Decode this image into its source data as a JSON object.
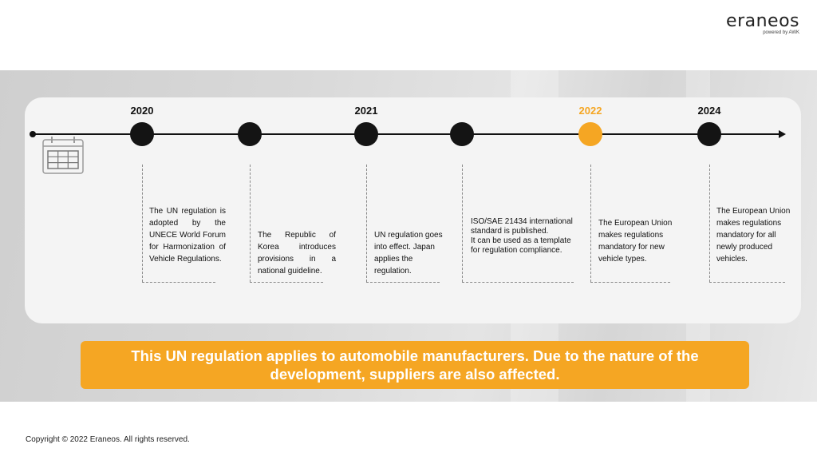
{
  "brand": {
    "name": "eraneos",
    "tagline": "powered by AWK"
  },
  "timeline": {
    "highlight_color": "#f5a623",
    "years": [
      {
        "label": "2020",
        "highlight": false
      },
      {
        "label": "2021",
        "highlight": false
      },
      {
        "label": "2022",
        "highlight": true
      },
      {
        "label": "2024",
        "highlight": false
      }
    ],
    "milestones": [
      {
        "text": "The UN regulation is adopted by the UNECE World Forum for Harmonization of Vehicle Regulations."
      },
      {
        "text": "The Republic of Korea introduces provisions in a national guideline."
      },
      {
        "text": "UN regulation goes into effect. Japan applies the regulation."
      },
      {
        "text": "ISO/SAE 21434 international standard is published.\nIt can be used as a template for regulation compliance."
      },
      {
        "text": "The European Union makes regulations mandatory for new vehicle types."
      },
      {
        "text": "The European Union makes regulations mandatory for all newly produced vehicles."
      }
    ]
  },
  "callout": {
    "text": "This UN regulation applies to automobile manufacturers. Due to the nature of the development, suppliers are also affected."
  },
  "footer": {
    "copyright": "Copyright © 2022 Eraneos. All rights reserved."
  }
}
